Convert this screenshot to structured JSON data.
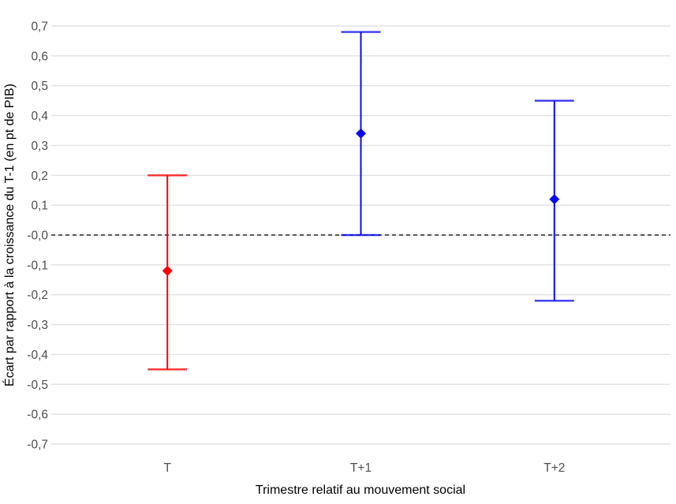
{
  "chart_data": {
    "type": "scatter",
    "subtype": "point-estimates-with-error-bars",
    "xlabel": "Trimestre relatif au mouvement social",
    "ylabel": "Écart par rapport à la croissance du T-1 (en pt de PIB)",
    "categories": [
      "T",
      "T+1",
      "T+2"
    ],
    "points": [
      {
        "x": "T",
        "y": -0.12,
        "ci_low": -0.45,
        "ci_high": 0.2,
        "color": "#ff0000"
      },
      {
        "x": "T+1",
        "y": 0.34,
        "ci_low": 0.0,
        "ci_high": 0.68,
        "color": "#0a0af0"
      },
      {
        "x": "T+2",
        "y": 0.12,
        "ci_low": -0.22,
        "ci_high": 0.45,
        "color": "#0a0af0"
      }
    ],
    "ylim": [
      -0.7,
      0.7
    ],
    "ytick_step": 0.1,
    "decimal_separator": ",",
    "marker": "diamond",
    "reference_line": {
      "y": 0.0,
      "style": "dashed",
      "color": "#000000"
    },
    "grid": "horizontal-only",
    "gridline_color": "#e1e1e1",
    "legend": "none",
    "background": "#ffffff"
  }
}
